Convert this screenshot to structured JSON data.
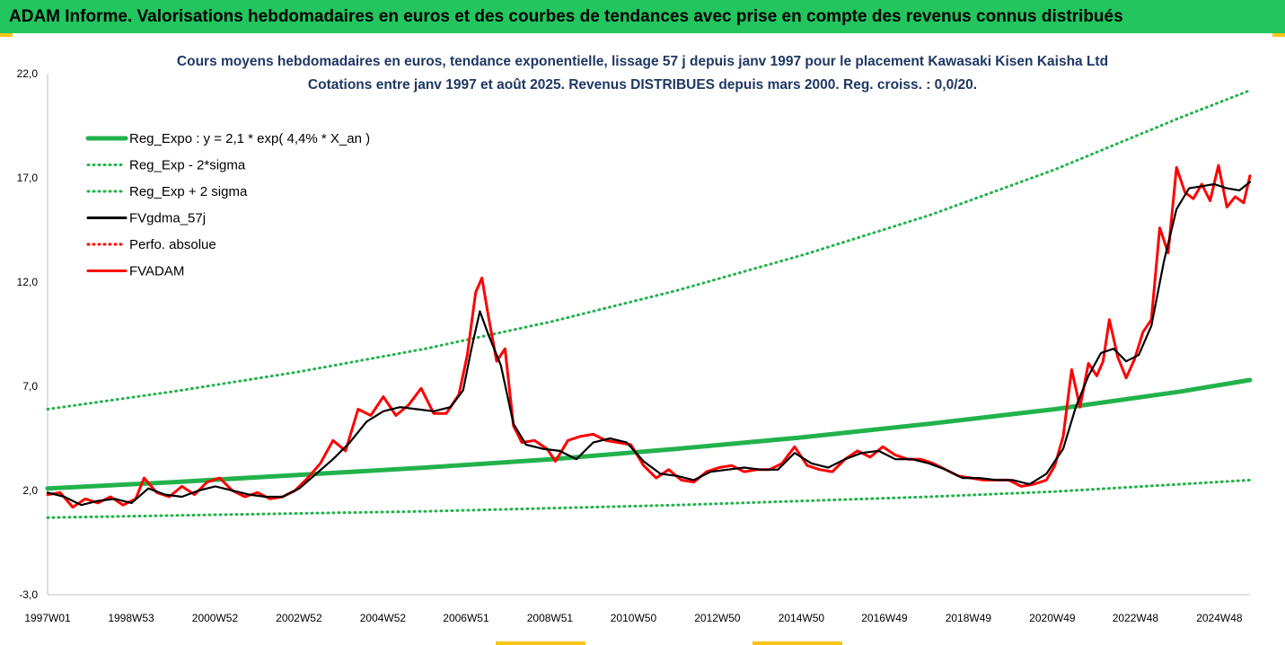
{
  "banner": {
    "title": "ADAM Informe. Valorisations hebdomadaires en euros et des courbes de tendances avec prise en compte des revenus connus distribués"
  },
  "colors": {
    "banner_bg": "#22c55e",
    "trend_green": "#22b24c",
    "fvadam_red": "#ff0000",
    "fvgdma_black": "#000000",
    "title_blue": "#1f3864"
  },
  "chart_data": {
    "type": "line",
    "title": "Cours moyens hebdomadaires en euros, tendance exponentielle, lissage 57 j depuis janv 1997 pour le placement Kawasaki Kisen Kaisha Ltd",
    "subtitle": "Cotations entre janv 1997 et août 2025.  Revenus DISTRIBUES depuis mars 2000. Reg. croiss. : 0,0/20.",
    "xlabel": "",
    "ylabel": "",
    "ylim": [
      -3.0,
      22.0
    ],
    "xlim": [
      1997.0,
      2025.65
    ],
    "y_ticks": [
      "-3,0",
      "2,0",
      "7,0",
      "12,0",
      "17,0",
      "22,0"
    ],
    "x_ticks": [
      {
        "label": "1997W01",
        "x": 1997.0
      },
      {
        "label": "1998W53",
        "x": 1998.99
      },
      {
        "label": "2000W52",
        "x": 2000.99
      },
      {
        "label": "2002W52",
        "x": 2002.99
      },
      {
        "label": "2004W52",
        "x": 2004.99
      },
      {
        "label": "2006W51",
        "x": 2006.97
      },
      {
        "label": "2008W51",
        "x": 2008.97
      },
      {
        "label": "2010W50",
        "x": 2010.96
      },
      {
        "label": "2012W50",
        "x": 2012.96
      },
      {
        "label": "2014W50",
        "x": 2014.96
      },
      {
        "label": "2016W49",
        "x": 2016.94
      },
      {
        "label": "2018W49",
        "x": 2018.94
      },
      {
        "label": "2020W49",
        "x": 2020.94
      },
      {
        "label": "2022W48",
        "x": 2022.92
      },
      {
        "label": "2024W48",
        "x": 2024.92
      }
    ],
    "grid": false,
    "legend_position": "top-left",
    "series": [
      {
        "name": "Reg_Expo : y = 2,1 * exp( 4,4% *  X_an )",
        "style": "solid-thick",
        "color": "#22b24c",
        "x": [
          1997.0,
          2000.0,
          2003.0,
          2006.0,
          2009.0,
          2012.0,
          2015.0,
          2018.0,
          2021.0,
          2024.0,
          2025.65
        ],
        "values": [
          2.1,
          2.4,
          2.75,
          3.1,
          3.5,
          4.0,
          4.55,
          5.2,
          5.9,
          6.75,
          7.3
        ]
      },
      {
        "name": "Reg_Exp - 2*sigma",
        "style": "dotted",
        "color": "#22b24c",
        "x": [
          1997.0,
          2000.0,
          2003.0,
          2006.0,
          2009.0,
          2012.0,
          2015.0,
          2018.0,
          2021.0,
          2024.0,
          2025.65
        ],
        "values": [
          0.7,
          0.8,
          0.9,
          1.0,
          1.15,
          1.3,
          1.5,
          1.7,
          1.95,
          2.3,
          2.5
        ]
      },
      {
        "name": "Reg_Exp + 2 sigma",
        "style": "dotted",
        "color": "#22b24c",
        "x": [
          1997.0,
          2000.0,
          2003.0,
          2006.0,
          2009.0,
          2012.0,
          2015.0,
          2018.0,
          2021.0,
          2024.0,
          2025.65
        ],
        "values": [
          5.9,
          6.75,
          7.7,
          8.8,
          10.1,
          11.6,
          13.3,
          15.2,
          17.4,
          19.9,
          21.2
        ]
      },
      {
        "name": "FVgdma_57j",
        "style": "solid",
        "color": "#000000",
        "x": [
          1997.0,
          1997.4,
          1997.8,
          1998.2,
          1998.6,
          1999.0,
          1999.4,
          1999.8,
          2000.2,
          2000.6,
          2001.0,
          2001.4,
          2001.8,
          2002.2,
          2002.6,
          2003.0,
          2003.4,
          2003.8,
          2004.2,
          2004.6,
          2005.0,
          2005.4,
          2005.8,
          2006.2,
          2006.6,
          2006.9,
          2007.1,
          2007.3,
          2007.5,
          2007.8,
          2008.1,
          2008.4,
          2008.8,
          2009.2,
          2009.6,
          2010.0,
          2010.4,
          2010.8,
          2011.2,
          2011.6,
          2012.0,
          2012.4,
          2012.8,
          2013.2,
          2013.6,
          2014.0,
          2014.4,
          2014.8,
          2015.2,
          2015.6,
          2016.0,
          2016.4,
          2016.8,
          2017.2,
          2017.6,
          2018.0,
          2018.4,
          2018.8,
          2019.2,
          2019.6,
          2020.0,
          2020.4,
          2020.8,
          2021.2,
          2021.5,
          2021.8,
          2022.1,
          2022.4,
          2022.7,
          2023.0,
          2023.3,
          2023.6,
          2023.9,
          2024.2,
          2024.5,
          2024.8,
          2025.1,
          2025.4,
          2025.65
        ],
        "values": [
          1.9,
          1.7,
          1.3,
          1.5,
          1.6,
          1.4,
          2.1,
          1.8,
          1.7,
          2.0,
          2.2,
          2.0,
          1.8,
          1.7,
          1.7,
          2.1,
          2.8,
          3.5,
          4.3,
          5.3,
          5.8,
          6.0,
          5.9,
          5.8,
          6.0,
          6.8,
          8.8,
          10.6,
          9.5,
          8.0,
          5.2,
          4.2,
          4.0,
          3.9,
          3.5,
          4.3,
          4.5,
          4.3,
          3.4,
          2.8,
          2.7,
          2.5,
          2.9,
          3.0,
          3.1,
          3.0,
          3.0,
          3.8,
          3.3,
          3.1,
          3.5,
          3.8,
          3.9,
          3.5,
          3.5,
          3.3,
          3.0,
          2.6,
          2.6,
          2.5,
          2.5,
          2.3,
          2.8,
          4.0,
          6.0,
          7.5,
          8.6,
          8.8,
          8.2,
          8.5,
          9.9,
          13.0,
          15.5,
          16.5,
          16.6,
          16.7,
          16.5,
          16.4,
          16.8
        ]
      },
      {
        "name": "Perfo. absolue",
        "style": "dotted",
        "color": "#ff0000",
        "x": [],
        "values": []
      },
      {
        "name": "FVADAM",
        "style": "solid-thick",
        "color": "#ff0000",
        "x": [
          1997.0,
          1997.3,
          1997.6,
          1997.9,
          1998.2,
          1998.5,
          1998.8,
          1999.1,
          1999.3,
          1999.6,
          1999.9,
          2000.2,
          2000.5,
          2000.8,
          2001.1,
          2001.4,
          2001.7,
          2002.0,
          2002.3,
          2002.6,
          2002.9,
          2003.2,
          2003.5,
          2003.8,
          2004.1,
          2004.4,
          2004.7,
          2005.0,
          2005.3,
          2005.6,
          2005.9,
          2006.2,
          2006.5,
          2006.8,
          2007.0,
          2007.2,
          2007.35,
          2007.5,
          2007.7,
          2007.9,
          2008.1,
          2008.3,
          2008.6,
          2008.9,
          2009.1,
          2009.4,
          2009.7,
          2010.0,
          2010.3,
          2010.6,
          2010.9,
          2011.2,
          2011.5,
          2011.8,
          2012.1,
          2012.4,
          2012.7,
          2013.0,
          2013.3,
          2013.6,
          2013.9,
          2014.2,
          2014.5,
          2014.8,
          2015.1,
          2015.4,
          2015.7,
          2016.0,
          2016.3,
          2016.6,
          2016.9,
          2017.2,
          2017.5,
          2017.8,
          2018.1,
          2018.4,
          2018.7,
          2019.0,
          2019.3,
          2019.6,
          2019.9,
          2020.2,
          2020.5,
          2020.8,
          2021.0,
          2021.2,
          2021.4,
          2021.6,
          2021.8,
          2022.0,
          2022.15,
          2022.3,
          2022.5,
          2022.7,
          2022.9,
          2023.1,
          2023.3,
          2023.5,
          2023.7,
          2023.9,
          2024.1,
          2024.3,
          2024.5,
          2024.7,
          2024.9,
          2025.1,
          2025.3,
          2025.5,
          2025.65
        ],
        "values": [
          1.8,
          1.9,
          1.2,
          1.6,
          1.4,
          1.7,
          1.3,
          1.6,
          2.6,
          1.9,
          1.7,
          2.2,
          1.8,
          2.4,
          2.6,
          2.0,
          1.7,
          1.9,
          1.6,
          1.7,
          2.0,
          2.6,
          3.3,
          4.4,
          3.9,
          5.9,
          5.6,
          6.5,
          5.6,
          6.1,
          6.9,
          5.7,
          5.7,
          6.6,
          8.5,
          11.5,
          12.2,
          10.4,
          8.2,
          8.8,
          5.1,
          4.3,
          4.4,
          4.0,
          3.4,
          4.4,
          4.6,
          4.7,
          4.4,
          4.3,
          4.2,
          3.2,
          2.6,
          3.0,
          2.5,
          2.4,
          2.9,
          3.1,
          3.2,
          2.9,
          3.0,
          3.0,
          3.3,
          4.1,
          3.2,
          3.0,
          2.9,
          3.5,
          3.9,
          3.6,
          4.1,
          3.7,
          3.5,
          3.5,
          3.3,
          3.0,
          2.7,
          2.6,
          2.5,
          2.5,
          2.5,
          2.2,
          2.3,
          2.5,
          3.2,
          4.6,
          7.8,
          6.0,
          8.1,
          7.5,
          8.2,
          10.2,
          8.4,
          7.4,
          8.3,
          9.6,
          10.2,
          14.6,
          13.4,
          17.5,
          16.3,
          16.0,
          16.7,
          15.9,
          17.6,
          15.6,
          16.1,
          15.8,
          17.1
        ]
      }
    ]
  }
}
